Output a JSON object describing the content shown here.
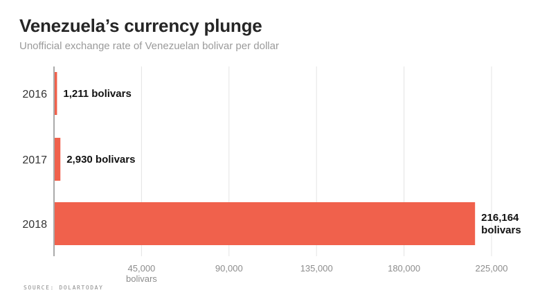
{
  "chart_data": {
    "type": "bar",
    "orientation": "horizontal",
    "title": "Venezuela’s currency plunge",
    "subtitle": "Unofficial exchange rate of Venezuelan bolivar per dollar",
    "categories": [
      "2016",
      "2017",
      "2018"
    ],
    "values": [
      1211,
      2930,
      216164
    ],
    "data_labels": [
      [
        "1,211 bolivars"
      ],
      [
        "2,930 bolivars"
      ],
      [
        "216,164",
        "bolivars"
      ]
    ],
    "xlim": [
      0,
      225000
    ],
    "x_ticks": [
      45000,
      90000,
      135000,
      180000,
      225000
    ],
    "x_tick_labels": [
      "45,000",
      "90,000",
      "135,000",
      "180,000",
      "225,000"
    ],
    "x_unit_label": "bolivars",
    "grid": true,
    "bar_color": "#f0614c",
    "source": "SOURCE: DOLARTODAY"
  }
}
